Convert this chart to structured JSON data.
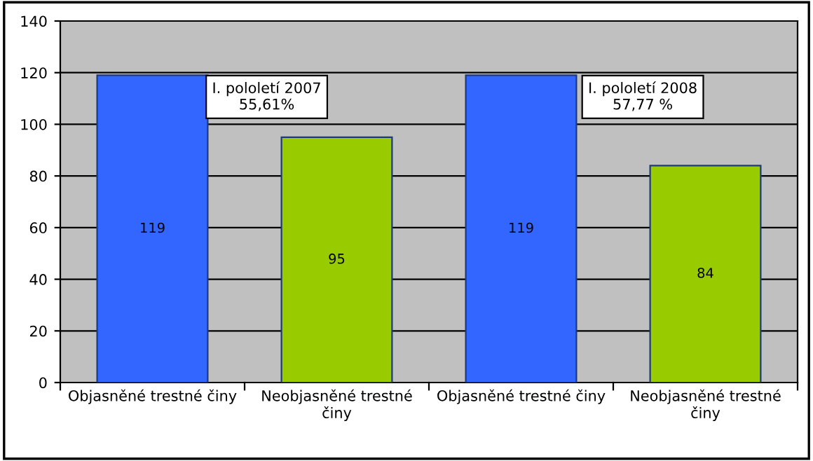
{
  "chart_data": {
    "type": "bar",
    "categories": [
      "Objasněné trestné činy",
      "Neobjasněné trestné činy",
      "Objasněné trestné činy",
      "Neobjasněné trestné činy"
    ],
    "values": [
      119,
      95,
      119,
      84
    ],
    "colors": [
      "#3366ff",
      "#99cc00",
      "#3366ff",
      "#99cc00"
    ],
    "ylim": [
      0,
      140
    ],
    "yticks": [
      0,
      20,
      40,
      60,
      80,
      100,
      120,
      140
    ],
    "grid": "y",
    "data_labels": true,
    "annotations": [
      "I. pololetí 2007\n55,61%",
      "I. pololetí 2008\n57,77 %"
    ]
  }
}
